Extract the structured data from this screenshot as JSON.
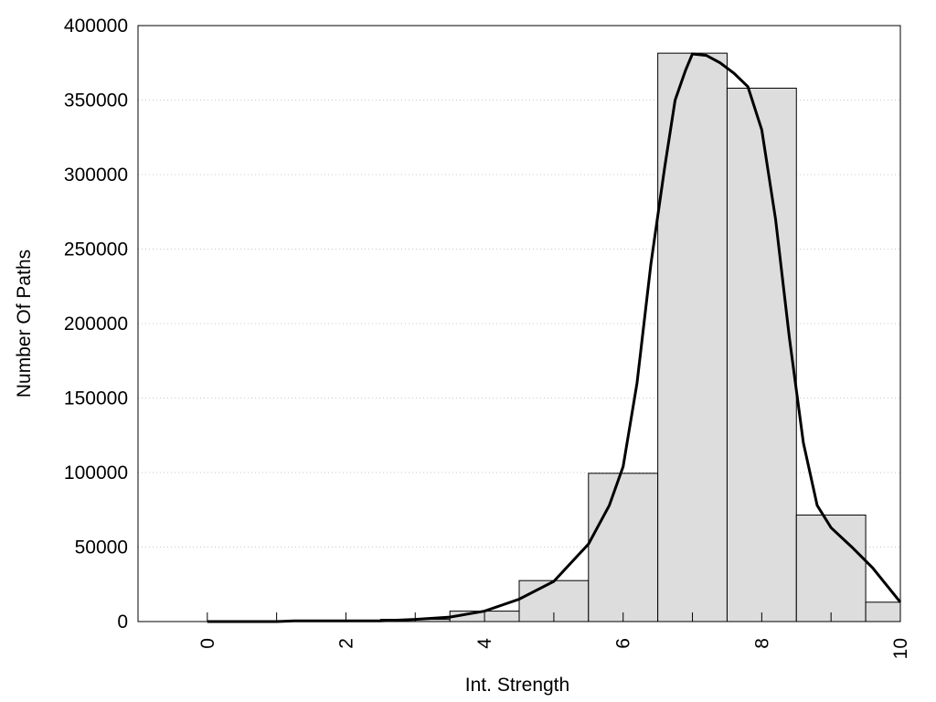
{
  "chart_data": {
    "type": "bar",
    "title": "",
    "xlabel": "Int. Strength",
    "ylabel": "Number Of Paths",
    "xlim": [
      -1,
      10
    ],
    "ylim": [
      0,
      400000
    ],
    "x_ticks": [
      "0",
      "2",
      "4",
      "6",
      "8",
      "10"
    ],
    "y_ticks": [
      "0",
      "50000",
      "100000",
      "150000",
      "200000",
      "250000",
      "300000",
      "350000",
      "400000"
    ],
    "grid": "horizontal dotted",
    "bar_color": "#dddddd",
    "bars": [
      {
        "x": 0,
        "value": 0
      },
      {
        "x": 1,
        "value": 0
      },
      {
        "x": 2,
        "value": 500
      },
      {
        "x": 3,
        "value": 1500
      },
      {
        "x": 4,
        "value": 7000
      },
      {
        "x": 5,
        "value": 27500
      },
      {
        "x": 6,
        "value": 99500
      },
      {
        "x": 7,
        "value": 381500
      },
      {
        "x": 8,
        "value": 358000
      },
      {
        "x": 9,
        "value": 71500
      },
      {
        "x": 10,
        "value": 13000
      }
    ],
    "curve": {
      "x": [
        0,
        1,
        1.25,
        2,
        2.5,
        3,
        3.5,
        4,
        4.5,
        5,
        5.5,
        5.8,
        6,
        6.2,
        6.4,
        6.6,
        6.75,
        6.9,
        7,
        7.2,
        7.4,
        7.6,
        7.8,
        8,
        8.2,
        8.4,
        8.6,
        8.8,
        9,
        9.3,
        9.6,
        10
      ],
      "y": [
        0,
        0,
        500,
        500,
        500,
        1500,
        3000,
        7000,
        15000,
        27000,
        52000,
        78000,
        104000,
        160000,
        240000,
        305000,
        350000,
        370000,
        381000,
        380000,
        375000,
        368000,
        359000,
        330000,
        270000,
        190000,
        120000,
        78000,
        63000,
        50000,
        36000,
        13000
      ]
    }
  }
}
